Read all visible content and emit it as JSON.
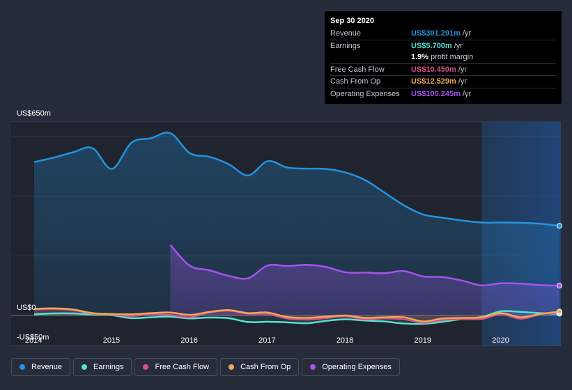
{
  "tooltip": {
    "date": "Sep 30 2020",
    "rows": [
      {
        "label": "Revenue",
        "value": "US$301.291m",
        "unit": "/yr",
        "color": "#2394df"
      },
      {
        "label": "Earnings",
        "value": "US$5.700m",
        "unit": "/yr",
        "color": "#56e2cf"
      },
      {
        "label": "",
        "value": "1.9%",
        "unit": "profit margin",
        "color": "#ffffff"
      },
      {
        "label": "Free Cash Flow",
        "value": "US$10.450m",
        "unit": "/yr",
        "color": "#d64f8a"
      },
      {
        "label": "Cash From Op",
        "value": "US$12.529m",
        "unit": "/yr",
        "color": "#f0a855"
      },
      {
        "label": "Operating Expenses",
        "value": "US$100.245m",
        "unit": "/yr",
        "color": "#a653f0"
      }
    ]
  },
  "legend": {
    "items": [
      {
        "label": "Revenue",
        "color": "#2394df"
      },
      {
        "label": "Earnings",
        "color": "#56e2cf"
      },
      {
        "label": "Free Cash Flow",
        "color": "#d64f8a"
      },
      {
        "label": "Cash From Op",
        "color": "#f0a855"
      },
      {
        "label": "Operating Expenses",
        "color": "#a653f0"
      }
    ]
  },
  "chart_data": {
    "type": "area",
    "title": "",
    "xlabel": "",
    "ylabel": "",
    "ylim": [
      -50,
      650
    ],
    "xlim": [
      2014.0,
      2020.75
    ],
    "y_tick_labels": [
      "US$650m",
      "US$0",
      "-US$50m"
    ],
    "x_tick_labels": [
      "2014",
      "2015",
      "2016",
      "2017",
      "2018",
      "2019",
      "2020"
    ],
    "forecast_start": 2019.75,
    "series": [
      {
        "name": "Revenue",
        "color": "#2394df",
        "x": [
          2014.0,
          2014.25,
          2014.5,
          2014.75,
          2015.0,
          2015.25,
          2015.5,
          2015.75,
          2016.0,
          2016.25,
          2016.5,
          2016.75,
          2017.0,
          2017.25,
          2017.5,
          2017.75,
          2018.0,
          2018.25,
          2018.5,
          2018.75,
          2019.0,
          2019.25,
          2019.5,
          2019.75,
          2020.0,
          2020.25,
          2020.5,
          2020.75
        ],
        "values": [
          515,
          530,
          548,
          562,
          492,
          580,
          595,
          612,
          545,
          533,
          508,
          470,
          518,
          497,
          493,
          492,
          480,
          455,
          413,
          370,
          339,
          328,
          319,
          312,
          312,
          311,
          308,
          301
        ]
      },
      {
        "name": "Earnings",
        "color": "#56e2cf",
        "x": [
          2014.0,
          2014.25,
          2014.5,
          2014.75,
          2015.0,
          2015.25,
          2015.5,
          2015.75,
          2016.0,
          2016.25,
          2016.5,
          2016.75,
          2017.0,
          2017.25,
          2017.5,
          2017.75,
          2018.0,
          2018.25,
          2018.5,
          2018.75,
          2019.0,
          2019.25,
          2019.5,
          2019.75,
          2020.0,
          2020.25,
          2020.5,
          2020.75
        ],
        "values": [
          4,
          7,
          7,
          3,
          1,
          -9,
          -6,
          -4,
          -10,
          -7,
          -9,
          -22,
          -21,
          -23,
          -26,
          -18,
          -13,
          -17,
          -20,
          -27,
          -28,
          -21,
          -12,
          -5,
          14,
          12,
          8,
          6
        ]
      },
      {
        "name": "Free Cash Flow",
        "color": "#d64f8a",
        "x": [
          2014.0,
          2014.25,
          2014.5,
          2014.75,
          2015.0,
          2015.25,
          2015.5,
          2015.75,
          2016.0,
          2016.25,
          2016.5,
          2016.75,
          2017.0,
          2017.25,
          2017.5,
          2017.75,
          2018.0,
          2018.25,
          2018.5,
          2018.75,
          2019.0,
          2019.25,
          2019.5,
          2019.75,
          2020.0,
          2020.25,
          2020.5,
          2020.75
        ],
        "values": [
          20,
          22,
          18,
          6,
          3,
          -2,
          4,
          2,
          -6,
          10,
          16,
          6,
          5,
          -10,
          -14,
          -9,
          -3,
          -13,
          -10,
          -13,
          -24,
          -15,
          -12,
          -12,
          4,
          -11,
          3,
          10
        ]
      },
      {
        "name": "Cash From Op",
        "color": "#f0a855",
        "x": [
          2014.0,
          2014.25,
          2014.5,
          2014.75,
          2015.0,
          2015.25,
          2015.5,
          2015.75,
          2016.0,
          2016.25,
          2016.5,
          2016.75,
          2017.0,
          2017.25,
          2017.5,
          2017.75,
          2018.0,
          2018.25,
          2018.5,
          2018.75,
          2019.0,
          2019.25,
          2019.5,
          2019.75,
          2020.0,
          2020.25,
          2020.5,
          2020.75
        ],
        "values": [
          22,
          24,
          20,
          8,
          5,
          4,
          8,
          10,
          2,
          12,
          18,
          8,
          10,
          -5,
          -8,
          -4,
          0,
          -8,
          -6,
          -6,
          -20,
          -10,
          -8,
          -6,
          8,
          -6,
          5,
          13
        ]
      },
      {
        "name": "Operating Expenses",
        "color": "#a653f0",
        "x": [
          2015.75,
          2016.0,
          2016.25,
          2016.5,
          2016.75,
          2017.0,
          2017.25,
          2017.5,
          2017.75,
          2018.0,
          2018.25,
          2018.5,
          2018.75,
          2019.0,
          2019.25,
          2019.5,
          2019.75,
          2020.0,
          2020.25,
          2020.5,
          2020.75
        ],
        "values": [
          237,
          167,
          152,
          133,
          125,
          168,
          166,
          170,
          163,
          145,
          144,
          142,
          149,
          131,
          129,
          117,
          101,
          108,
          107,
          102,
          100
        ]
      }
    ]
  }
}
